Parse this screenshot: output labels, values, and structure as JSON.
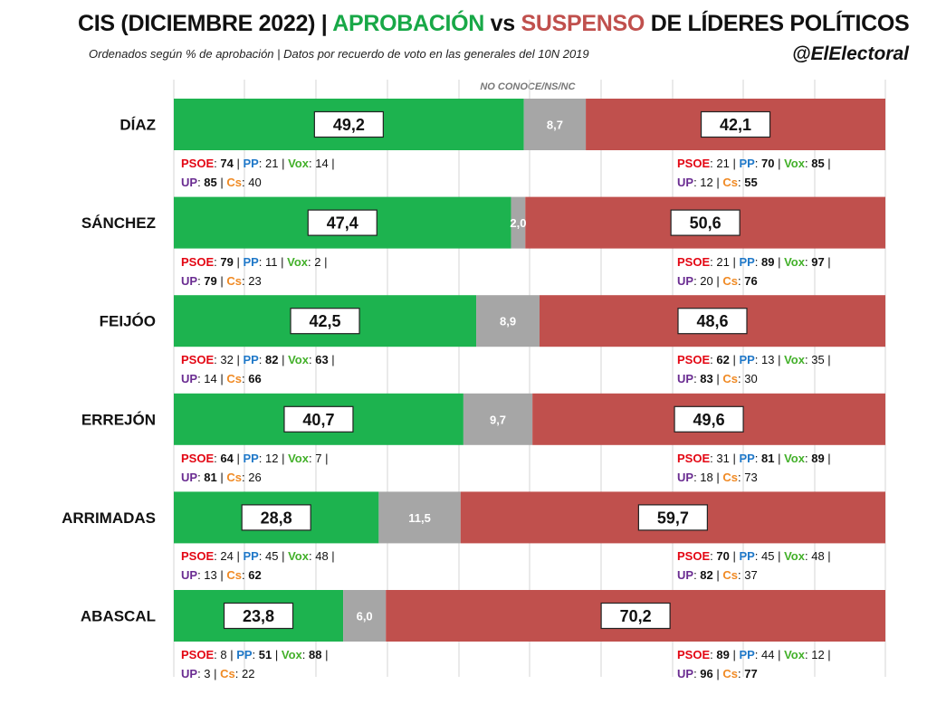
{
  "header": {
    "title_prefix": "CIS (DICIEMBRE 2022) | ",
    "title_approve": "APROBACIÓN",
    "title_vs": " vs ",
    "title_fail": "SUSPENSO",
    "title_suffix": " DE LÍDERES POLÍTICOS",
    "subtitle": "Ordenados según % de aprobación | Datos por recuerdo de voto en las generales del 10N 2019",
    "handle": "@ElElectoral",
    "no_conoce_label": "NO CONOCE/NS/NC"
  },
  "colors": {
    "approve": "#1db34f",
    "neutral": "#a6a6a6",
    "fail": "#c0504d",
    "title_approve": "#18a847",
    "title_fail": "#c0504d",
    "PSOE": "#e30613",
    "PP": "#1f78c8",
    "Vox": "#43b02a",
    "UP": "#6a2c91",
    "Cs": "#f08a24"
  },
  "chart_data": {
    "type": "bar",
    "orientation": "horizontal",
    "stacked": true,
    "categories": [
      "DÍAZ",
      "SÁNCHEZ",
      "FEIJÓO",
      "ERREJÓN",
      "ARRIMADAS",
      "ABASCAL"
    ],
    "series": [
      {
        "name": "APROBACIÓN",
        "values": [
          49.2,
          47.4,
          42.5,
          40.7,
          28.8,
          23.8
        ]
      },
      {
        "name": "NO CONOCE/NS/NC",
        "values": [
          8.7,
          2.0,
          8.9,
          9.7,
          11.5,
          6.0
        ]
      },
      {
        "name": "SUSPENSO",
        "values": [
          42.1,
          50.6,
          48.6,
          49.6,
          59.7,
          70.2
        ]
      }
    ],
    "value_labels": {
      "APROBACIÓN": [
        "49,2",
        "47,4",
        "42,5",
        "40,7",
        "28,8",
        "23,8"
      ],
      "NO CONOCE/NS/NC": [
        "8,7",
        "2,0",
        "8,9",
        "9,7",
        "11,5",
        "6,0"
      ],
      "SUSPENSO": [
        "42,1",
        "50,6",
        "48,6",
        "49,6",
        "59,7",
        "70,2"
      ]
    },
    "xlim": [
      0,
      100
    ],
    "grid": true,
    "party_breakdown": {
      "approve": [
        {
          "PSOE": "74",
          "PP": "21",
          "Vox": "14",
          "UP": "85",
          "Cs": "40",
          "bold": [
            "PSOE",
            "UP"
          ]
        },
        {
          "PSOE": "79",
          "PP": "11",
          "Vox": "2",
          "UP": "79",
          "Cs": "23",
          "bold": [
            "PSOE",
            "UP"
          ]
        },
        {
          "PSOE": "32",
          "PP": "82",
          "Vox": "63",
          "UP": "14",
          "Cs": "66",
          "bold": [
            "PP",
            "Vox",
            "Cs"
          ]
        },
        {
          "PSOE": "64",
          "PP": "12",
          "Vox": "7",
          "UP": "81",
          "Cs": "26",
          "bold": [
            "PSOE",
            "UP"
          ]
        },
        {
          "PSOE": "24",
          "PP": "45",
          "Vox": "48",
          "UP": "13",
          "Cs": "62",
          "bold": [
            "Cs"
          ]
        },
        {
          "PSOE": "8",
          "PP": "51",
          "Vox": "88",
          "UP": "3",
          "Cs": "22",
          "bold": [
            "PP",
            "Vox"
          ]
        }
      ],
      "fail": [
        {
          "PSOE": "21",
          "PP": "70",
          "Vox": "85",
          "UP": "12",
          "Cs": "55",
          "bold": [
            "PP",
            "Vox",
            "Cs"
          ]
        },
        {
          "PSOE": "21",
          "PP": "89",
          "Vox": "97",
          "UP": "20",
          "Cs": "76",
          "bold": [
            "PP",
            "Vox",
            "Cs"
          ]
        },
        {
          "PSOE": "62",
          "PP": "13",
          "Vox": "35",
          "UP": "83",
          "Cs": "30",
          "bold": [
            "PSOE",
            "UP"
          ]
        },
        {
          "PSOE": "31",
          "PP": "81",
          "Vox": "89",
          "UP": "18",
          "Cs": "73",
          "bold": [
            "PP",
            "Vox"
          ]
        },
        {
          "PSOE": "70",
          "PP": "45",
          "Vox": "48",
          "UP": "82",
          "Cs": "37",
          "bold": [
            "PSOE",
            "UP"
          ]
        },
        {
          "PSOE": "89",
          "PP": "44",
          "Vox": "12",
          "UP": "96",
          "Cs": "77",
          "bold": [
            "PSOE",
            "UP",
            "Cs"
          ]
        }
      ]
    }
  }
}
